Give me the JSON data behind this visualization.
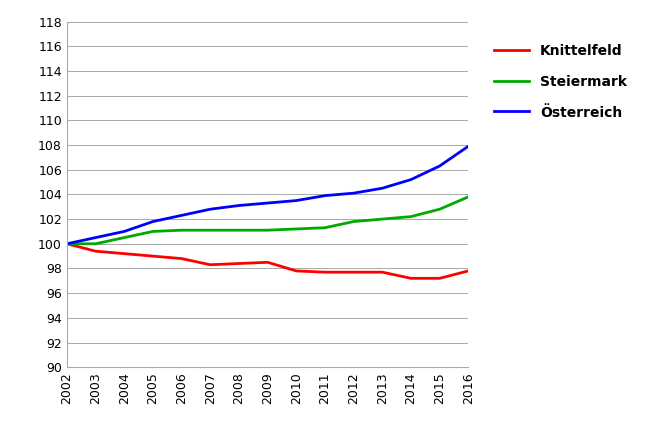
{
  "years": [
    2002,
    2003,
    2004,
    2005,
    2006,
    2007,
    2008,
    2009,
    2010,
    2011,
    2012,
    2013,
    2014,
    2015,
    2016
  ],
  "knittelfeld": [
    100.0,
    99.4,
    99.2,
    99.0,
    98.8,
    98.3,
    98.4,
    98.5,
    97.8,
    97.7,
    97.7,
    97.7,
    97.2,
    97.2,
    97.8
  ],
  "steiermark": [
    100.0,
    100.0,
    100.5,
    101.0,
    101.1,
    101.1,
    101.1,
    101.1,
    101.2,
    101.3,
    101.8,
    102.0,
    102.2,
    102.8,
    103.8
  ],
  "oesterreich": [
    100.0,
    100.5,
    101.0,
    101.8,
    102.3,
    102.8,
    103.1,
    103.3,
    103.5,
    103.9,
    104.1,
    104.5,
    105.2,
    106.3,
    107.9
  ],
  "knittelfeld_color": "#FF0000",
  "steiermark_color": "#00AA00",
  "oesterreich_color": "#0000FF",
  "line_width": 2.0,
  "ylim": [
    90,
    118
  ],
  "yticks": [
    90,
    92,
    94,
    96,
    98,
    100,
    102,
    104,
    106,
    108,
    110,
    112,
    114,
    116,
    118
  ],
  "legend_labels": [
    "Knittelfeld",
    "Steiermark",
    "Österreich"
  ],
  "background_color": "#FFFFFF",
  "grid_color": "#AAAAAA",
  "figsize": [
    6.69,
    4.32
  ],
  "dpi": 100
}
